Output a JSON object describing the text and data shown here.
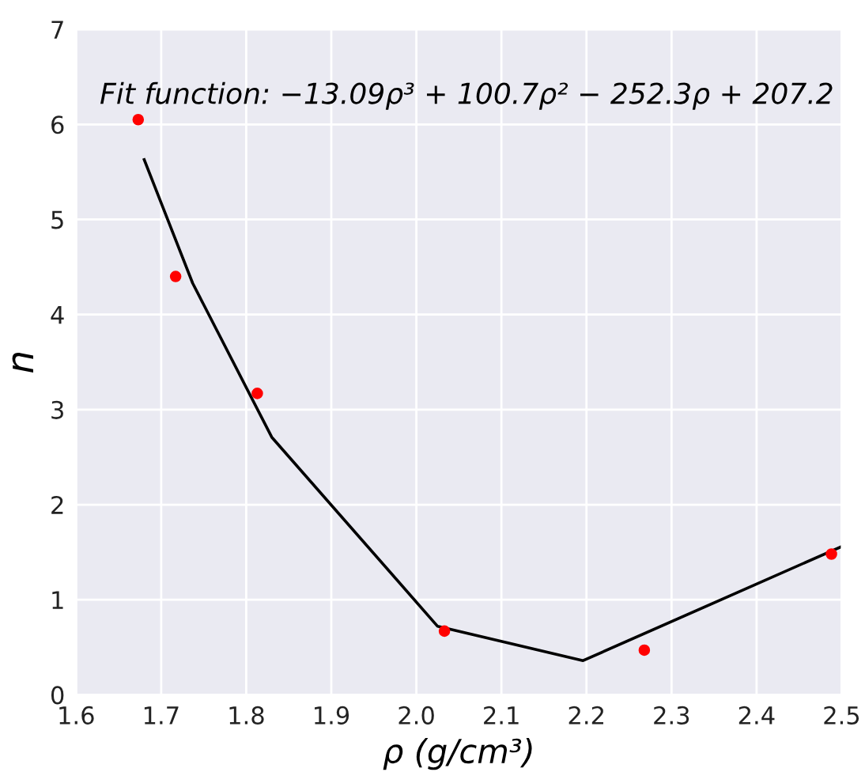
{
  "chart_data": {
    "type": "scatter",
    "xlabel": "ρ (g/cm³)",
    "ylabel": "n",
    "annotations": [
      "Fit function: −13.09ρ³ + 100.7ρ² − 252.3ρ + 207.2"
    ],
    "xlim": [
      1.6,
      2.5
    ],
    "ylim": [
      0,
      7
    ],
    "xticks": [
      {
        "value": 1.6,
        "label": "1.6"
      },
      {
        "value": 1.7,
        "label": "1.7"
      },
      {
        "value": 1.8,
        "label": "1.8"
      },
      {
        "value": 1.9,
        "label": "1.9"
      },
      {
        "value": 2.0,
        "label": "2.0"
      },
      {
        "value": 2.1,
        "label": "2.1"
      },
      {
        "value": 2.2,
        "label": "2.2"
      },
      {
        "value": 2.3,
        "label": "2.3"
      },
      {
        "value": 2.4,
        "label": "2.4"
      },
      {
        "value": 2.5,
        "label": "2.5"
      }
    ],
    "yticks": [
      0,
      1,
      2,
      3,
      4,
      5,
      6,
      7
    ],
    "grid": true,
    "legend": false,
    "series": [
      {
        "color": "#ff0000",
        "marker": "circle",
        "x": [
          1.673,
          1.717,
          1.813,
          2.033,
          2.268,
          2.488
        ],
        "values": [
          6.05,
          4.4,
          3.17,
          0.67,
          0.47,
          1.48
        ]
      },
      {
        "type": "line",
        "color": "#000000",
        "marker": "none",
        "line_style": "solid",
        "x": [
          1.68,
          1.737,
          1.83,
          2.025,
          2.196,
          2.5
        ],
        "values": [
          5.63,
          4.33,
          2.71,
          0.72,
          0.36,
          1.56
        ]
      }
    ]
  }
}
